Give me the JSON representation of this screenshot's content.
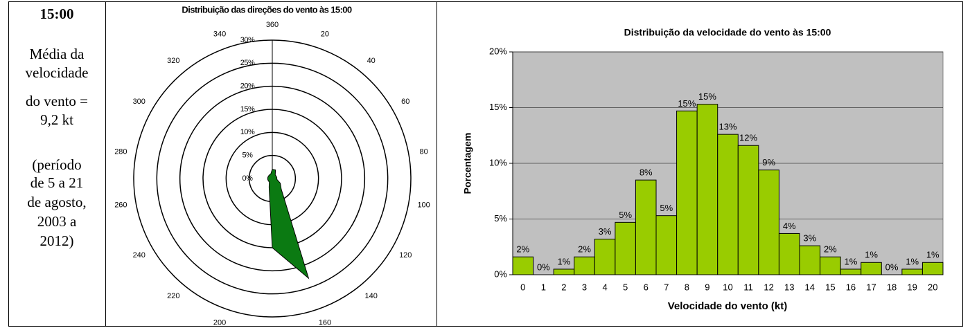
{
  "panel": {
    "heading": "15:00",
    "lines": [
      "Média da",
      "velocidade",
      "do vento =",
      "9,2 kt",
      "(período",
      "de 5 a 21",
      "de agosto,",
      "2003 a",
      "2012)"
    ]
  },
  "chart_data": [
    {
      "type": "radar",
      "title": "Distribuição das direções do vento às 15:00",
      "categories": [
        "20",
        "40",
        "60",
        "80",
        "100",
        "120",
        "140",
        "160",
        "180",
        "200",
        "220",
        "240",
        "260",
        "280",
        "300",
        "320",
        "340",
        "360"
      ],
      "values": [
        2,
        1,
        1,
        1,
        1,
        2,
        3,
        23,
        15,
        2,
        1,
        1,
        1,
        1,
        1,
        1,
        1,
        2
      ],
      "color": "#0b7a12",
      "ylim": [
        0,
        30
      ],
      "yticks": [
        {
          "value": 0,
          "label": "0%"
        },
        {
          "value": 5,
          "label": "5%"
        },
        {
          "value": 10,
          "label": "10%"
        },
        {
          "value": 15,
          "label": "15%"
        },
        {
          "value": 20,
          "label": "20%"
        },
        {
          "value": 25,
          "label": "25%"
        },
        {
          "value": 30,
          "label": "30%"
        }
      ],
      "tick_color": "#ff0000"
    },
    {
      "type": "bar",
      "title": "Distribuição da velocidade do vento às 15:00",
      "x_label": "Velocidade do vento (kt)",
      "y_label": "Porcentagem",
      "categories": [
        "0",
        "1",
        "2",
        "3",
        "4",
        "5",
        "6",
        "7",
        "8",
        "9",
        "10",
        "11",
        "12",
        "13",
        "14",
        "15",
        "16",
        "17",
        "18",
        "19",
        "20"
      ],
      "values": [
        1.6,
        0,
        0.5,
        1.6,
        3.2,
        4.7,
        8.5,
        5.3,
        14.7,
        15.3,
        12.6,
        11.6,
        9.4,
        3.7,
        2.6,
        1.6,
        0.5,
        1.1,
        0,
        0.5,
        1.1
      ],
      "value_labels": [
        "2%",
        "0%",
        "1%",
        "2%",
        "3%",
        "5%",
        "8%",
        "5%",
        "15%",
        "15%",
        "13%",
        "12%",
        "9%",
        "4%",
        "3%",
        "2%",
        "1%",
        "1%",
        "0%",
        "1%",
        "1%"
      ],
      "color": "#99cc00",
      "ylim": [
        0,
        20
      ],
      "yticks": [
        {
          "value": 0,
          "label": "0%"
        },
        {
          "value": 5,
          "label": "5%"
        },
        {
          "value": 10,
          "label": "10%"
        },
        {
          "value": 15,
          "label": "15%"
        },
        {
          "value": 20,
          "label": "20%"
        }
      ],
      "grid": true,
      "plot_background": "#c0c0c0"
    }
  ]
}
